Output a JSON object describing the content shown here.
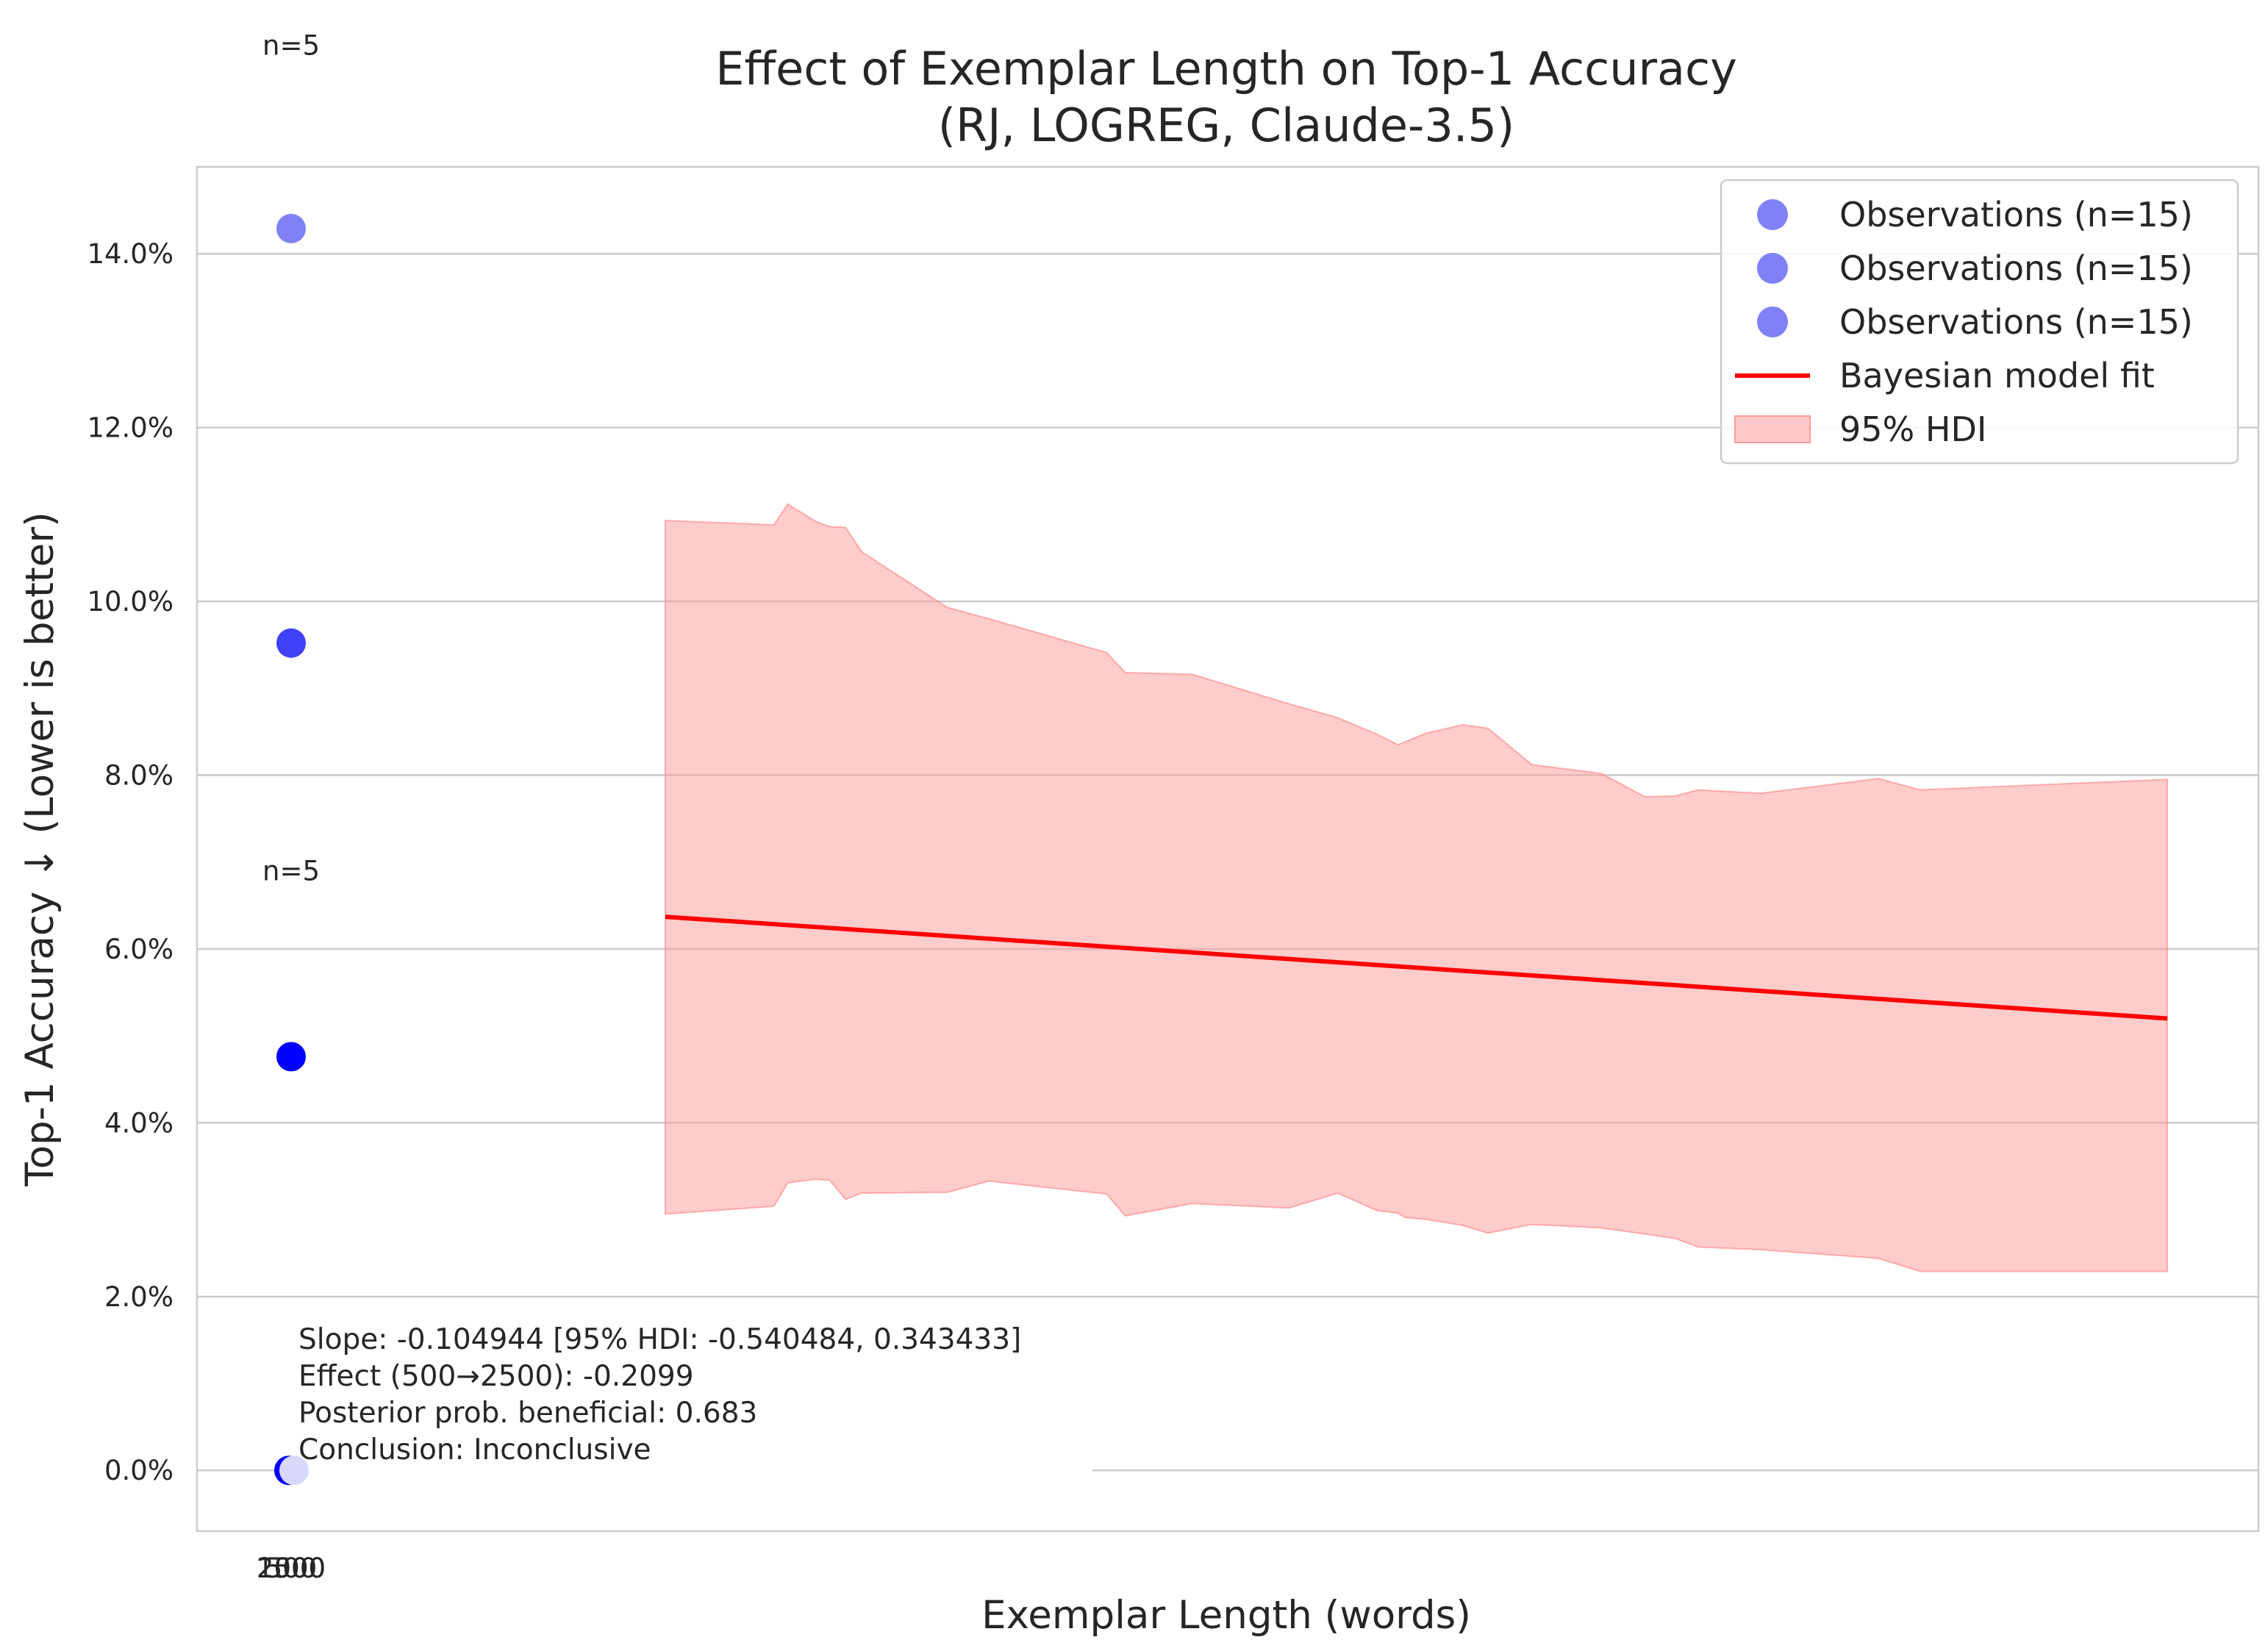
{
  "chart_data": {
    "type": "scatter",
    "title": "Effect of Exemplar Length on Top-1 Accuracy",
    "subtitle": "(RJ, LOGREG, Claude-3.5)",
    "xlabel": "Exemplar Length (words)",
    "ylabel": "Top-1 Accuracy ↓ (Lower is better)",
    "x_tick_labels": [
      "2500",
      "500",
      "1000"
    ],
    "y_tick_labels": [
      "0.0%",
      "2.0%",
      "4.0%",
      "6.0%",
      "8.0%",
      "10.0%",
      "12.0%",
      "14.0%"
    ],
    "ylim": [
      -0.7,
      15.0
    ],
    "grid": "horizontal",
    "legend_position": "top-right",
    "legend": [
      {
        "label": "Observations (n=15)",
        "kind": "marker",
        "color": "#8080f7"
      },
      {
        "label": "Observations (n=15)",
        "kind": "marker",
        "color": "#8080f7"
      },
      {
        "label": "Observations (n=15)",
        "kind": "marker",
        "color": "#8080f7"
      },
      {
        "label": "Bayesian model fit",
        "kind": "line",
        "color": "#ff0000"
      },
      {
        "label": "95% HDI",
        "kind": "patch",
        "color": "#ffc9c9"
      }
    ],
    "observations": [
      {
        "x": 500,
        "y": 14.29,
        "color": "#8080f7"
      },
      {
        "x": 500,
        "y": 9.52,
        "color": "#4040f7"
      },
      {
        "x": 500,
        "y": 4.76,
        "color": "#0000ff"
      },
      {
        "x": 500,
        "y": 0.0,
        "color": "#0000ff"
      },
      {
        "x": 500,
        "y": 0.0,
        "color": "#d8d8ff"
      }
    ],
    "count_labels": [
      {
        "text": "n=5",
        "y": 16.4
      },
      {
        "text": "n=5",
        "y": 6.9
      }
    ],
    "model_fit": {
      "x_start": 0.35,
      "x_end": 1.0,
      "y_start": 6.37,
      "y_end": 5.2
    },
    "hdi": {
      "x": [
        0.35,
        0.397,
        0.403,
        0.415,
        0.421,
        0.428,
        0.435,
        0.472,
        0.49,
        0.541,
        0.549,
        0.578,
        0.62,
        0.641,
        0.658,
        0.667,
        0.67,
        0.679,
        0.695,
        0.706,
        0.725,
        0.755,
        0.774,
        0.787,
        0.797,
        0.824,
        0.875,
        0.893,
        1.0
      ],
      "upper": [
        10.93,
        10.88,
        11.12,
        10.92,
        10.86,
        10.85,
        10.57,
        9.93,
        9.8,
        9.41,
        9.18,
        9.16,
        8.82,
        8.66,
        8.47,
        8.35,
        8.38,
        8.48,
        8.58,
        8.54,
        8.12,
        8.02,
        7.75,
        7.76,
        7.83,
        7.79,
        7.96,
        7.83,
        7.95
      ],
      "lower": [
        2.95,
        3.04,
        3.31,
        3.35,
        3.34,
        3.12,
        3.19,
        3.2,
        3.33,
        3.18,
        2.93,
        3.07,
        3.02,
        3.19,
        2.99,
        2.96,
        2.91,
        2.89,
        2.82,
        2.73,
        2.83,
        2.79,
        2.72,
        2.67,
        2.57,
        2.54,
        2.44,
        2.29,
        2.29
      ]
    },
    "annotation": [
      "Slope: -0.104944 [95% HDI: -0.540484, 0.343433]",
      "Effect (500→2500): -0.2099",
      "Posterior prob. beneficial: 0.683",
      "Conclusion: Inconclusive"
    ]
  }
}
